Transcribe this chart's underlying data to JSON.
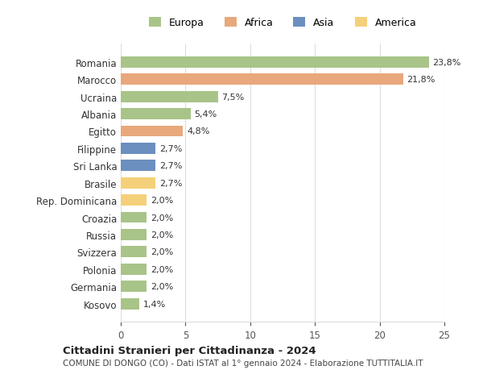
{
  "categories": [
    "Romania",
    "Marocco",
    "Ucraina",
    "Albania",
    "Egitto",
    "Filippine",
    "Sri Lanka",
    "Brasile",
    "Rep. Dominicana",
    "Croazia",
    "Russia",
    "Svizzera",
    "Polonia",
    "Germania",
    "Kosovo"
  ],
  "values": [
    23.8,
    21.8,
    7.5,
    5.4,
    4.8,
    2.7,
    2.7,
    2.7,
    2.0,
    2.0,
    2.0,
    2.0,
    2.0,
    2.0,
    1.4
  ],
  "labels": [
    "23,8%",
    "21,8%",
    "7,5%",
    "5,4%",
    "4,8%",
    "2,7%",
    "2,7%",
    "2,7%",
    "2,0%",
    "2,0%",
    "2,0%",
    "2,0%",
    "2,0%",
    "2,0%",
    "1,4%"
  ],
  "colors": [
    "#a8c488",
    "#e8a87c",
    "#a8c488",
    "#a8c488",
    "#e8a87c",
    "#6b8fbf",
    "#6b8fbf",
    "#f5d07a",
    "#f5d07a",
    "#a8c488",
    "#a8c488",
    "#a8c488",
    "#a8c488",
    "#a8c488",
    "#a8c488"
  ],
  "legend_labels": [
    "Europa",
    "Africa",
    "Asia",
    "America"
  ],
  "legend_colors": [
    "#a8c488",
    "#e8a87c",
    "#6b8fbf",
    "#f5d07a"
  ],
  "title": "Cittadini Stranieri per Cittadinanza - 2024",
  "subtitle": "COMUNE DI DONGO (CO) - Dati ISTAT al 1° gennaio 2024 - Elaborazione TUTTITALIA.IT",
  "xlim": [
    0,
    25
  ],
  "xticks": [
    0,
    5,
    10,
    15,
    20,
    25
  ],
  "background_color": "#ffffff",
  "grid_color": "#dddddd"
}
